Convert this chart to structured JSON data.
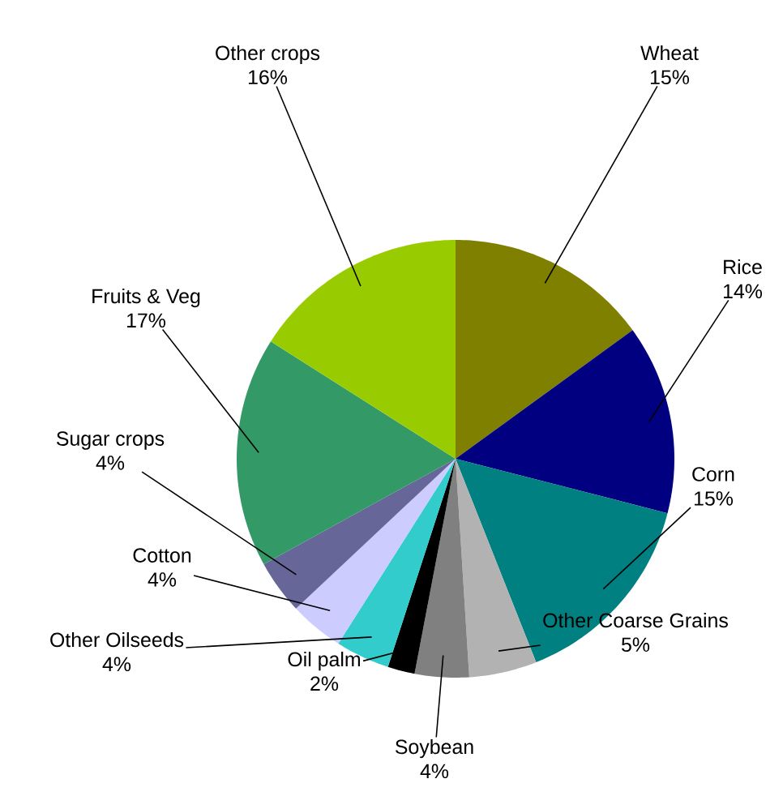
{
  "chart_data": {
    "type": "pie",
    "categories": [
      "Wheat",
      "Rice",
      "Corn",
      "Other Coarse Grains",
      "Soybean",
      "Oil palm",
      "Other Oilseeds",
      "Cotton",
      "Sugar crops",
      "Fruits & Veg",
      "Other crops"
    ],
    "values": [
      15,
      14,
      15,
      5,
      4,
      2,
      4,
      4,
      4,
      17,
      16
    ],
    "value_labels": [
      "15%",
      "14%",
      "15%",
      "5%",
      "4%",
      "2%",
      "4%",
      "4%",
      "4%",
      "17%",
      "16%"
    ],
    "colors": [
      "#808000",
      "#000080",
      "#008080",
      "#b2b2b2",
      "#808080",
      "#000000",
      "#33cccc",
      "#ccccff",
      "#666699",
      "#339966",
      "#99cc00"
    ]
  }
}
